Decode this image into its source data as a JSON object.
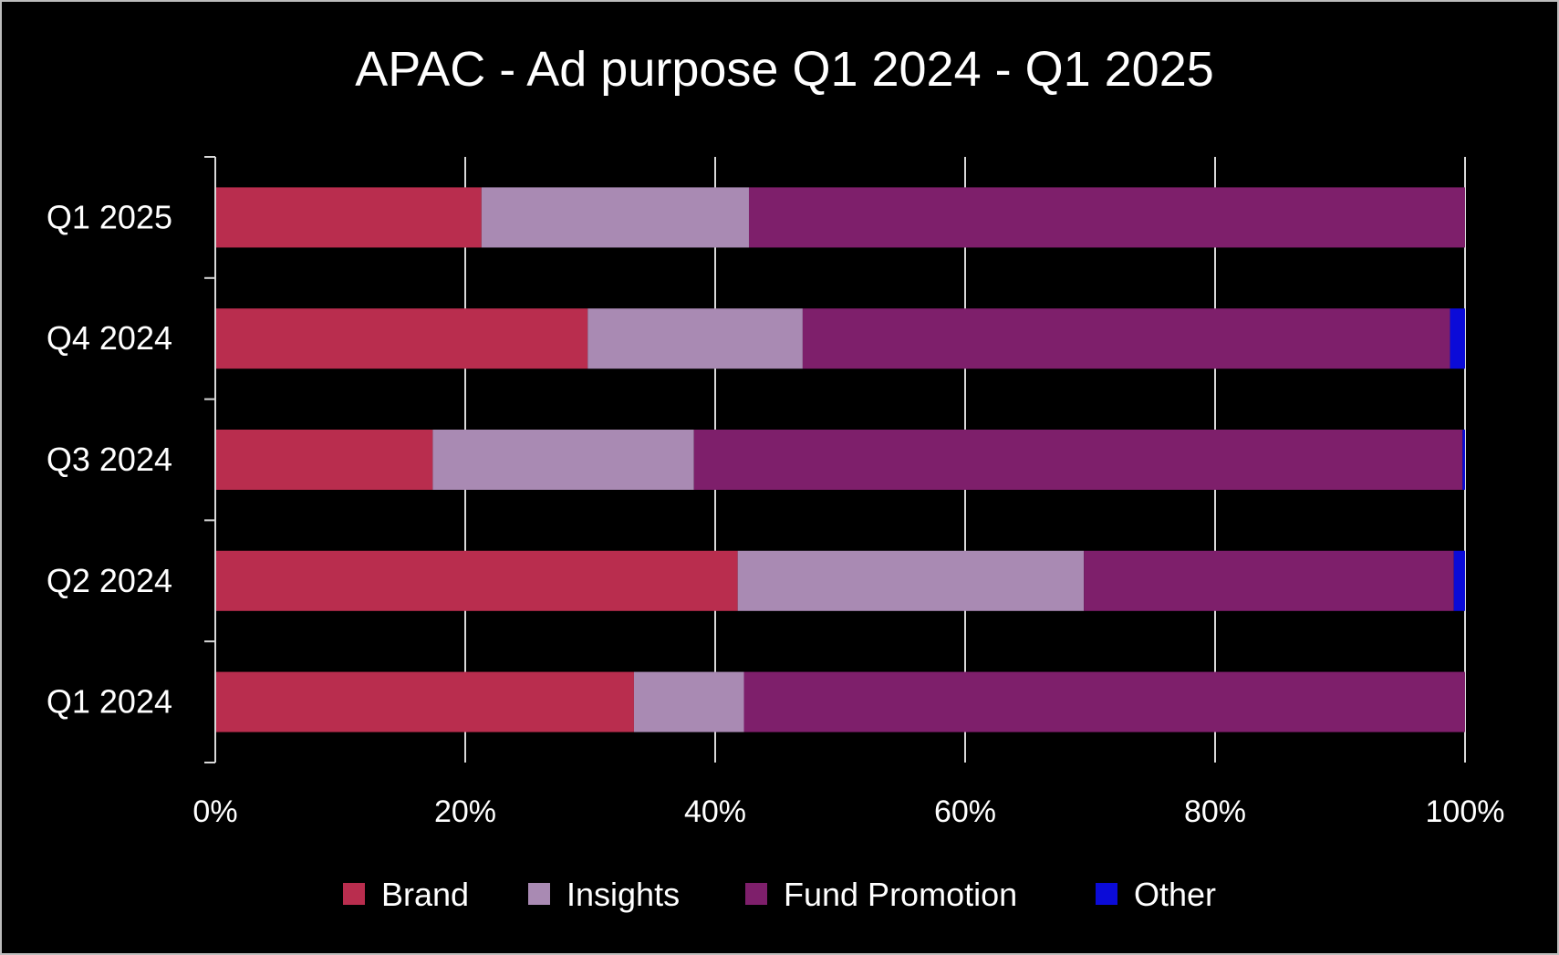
{
  "chart_data": {
    "type": "bar",
    "orientation": "horizontal",
    "stacked": "percent",
    "title": "APAC - Ad purpose Q1 2024 - Q1 2025",
    "categories": [
      "Q1 2025",
      "Q4 2024",
      "Q3 2024",
      "Q2 2024",
      "Q1 2024"
    ],
    "series": [
      {
        "name": "Brand",
        "color": "#b92d4e",
        "values": [
          21.3,
          29.8,
          17.4,
          41.8,
          33.5
        ]
      },
      {
        "name": "Insights",
        "color": "#a98ab3",
        "values": [
          21.4,
          17.2,
          20.9,
          27.7,
          8.8
        ]
      },
      {
        "name": "Fund Promotion",
        "color": "#7e1f6b",
        "values": [
          57.3,
          51.8,
          61.5,
          29.6,
          57.7
        ]
      },
      {
        "name": "Other",
        "color": "#0b0bd8",
        "values": [
          0.0,
          1.2,
          0.2,
          0.9,
          0.0
        ]
      }
    ],
    "xticks": [
      "0%",
      "20%",
      "40%",
      "60%",
      "80%",
      "100%"
    ],
    "xlim": [
      0,
      100
    ],
    "xlabel": "",
    "ylabel": "",
    "grid": "vertical",
    "legend": "bottom"
  }
}
